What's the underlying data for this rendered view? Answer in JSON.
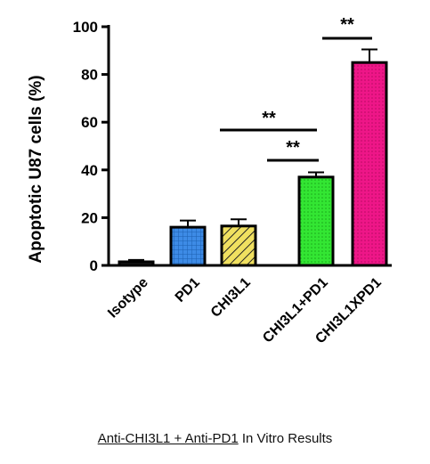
{
  "chart_data": {
    "type": "bar",
    "ylabel": "Apoptotic U87 cells (%)",
    "ylim": [
      0,
      100
    ],
    "yticks": [
      0,
      20,
      40,
      60,
      80,
      100
    ],
    "categories": [
      "Isotype",
      "PD1",
      "CHI3L1",
      "CHI3L1+PD1",
      "CHI3L1XPD1"
    ],
    "values": [
      1.5,
      16,
      16.5,
      37,
      85
    ],
    "errors": [
      0.8,
      2.8,
      2.8,
      2.0,
      5.5
    ],
    "colors": [
      "#1a1a1a",
      "#3d8be6",
      "#f0e060",
      "#33e633",
      "#ee1688"
    ],
    "patterns": [
      "solid",
      "grid",
      "stripe",
      "dots",
      "dots"
    ],
    "significance": [
      {
        "from": 1,
        "to": 3,
        "label": "**"
      },
      {
        "from": 3,
        "to": 3,
        "label": "**"
      },
      {
        "from": 4,
        "to": 4,
        "label": "**"
      }
    ]
  },
  "caption": {
    "underlined": "Anti-CHI3L1 + Anti-PD1",
    "rest": " In Vitro Results"
  }
}
